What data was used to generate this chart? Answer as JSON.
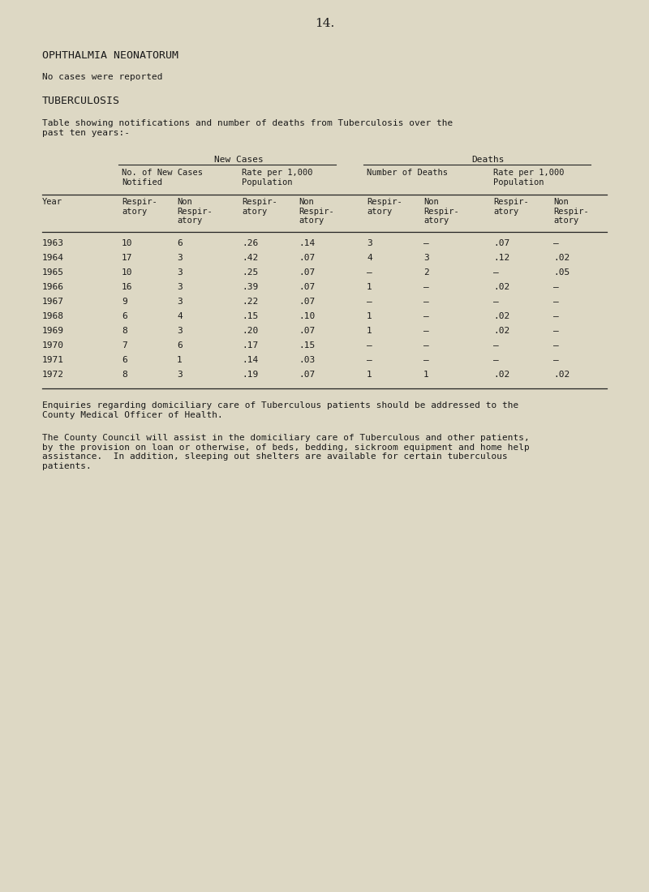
{
  "page_number": "14.",
  "bg_color": "#ddd8c4",
  "title1": "OPHTHALMIA NEONATORUM",
  "title2": "No cases were reported",
  "title3": "TUBERCULOSIS",
  "title4": "Table showing notifications and number of deaths from Tuberculosis over the\npast ten years:-",
  "section_new_cases": "New Cases",
  "section_deaths": "Deaths",
  "rows": [
    [
      "1963",
      "10",
      "6",
      ".26",
      ".14",
      "3",
      "-",
      ".07",
      "-"
    ],
    [
      "1964",
      "17",
      "3",
      ".42",
      ".07",
      "4",
      "3",
      ".12",
      ".02"
    ],
    [
      "1965",
      "10",
      "3",
      ".25",
      ".07",
      "-",
      "2",
      "-",
      ".05"
    ],
    [
      "1966",
      "16",
      "3",
      ".39",
      ".07",
      "1",
      "-",
      ".02",
      "-"
    ],
    [
      "1967",
      "9",
      "3",
      ".22",
      ".07",
      "-",
      "-",
      "-",
      "-"
    ],
    [
      "1968",
      "6",
      "4",
      ".15",
      ".10",
      "1",
      "-",
      ".02",
      "-"
    ],
    [
      "1969",
      "8",
      "3",
      ".20",
      ".07",
      "1",
      "-",
      ".02",
      "-"
    ],
    [
      "1970",
      "7",
      "6",
      ".17",
      ".15",
      "-",
      "-",
      "-",
      "-"
    ],
    [
      "1971",
      "6",
      "1",
      ".14",
      ".03",
      "-",
      "-",
      "-",
      "-"
    ],
    [
      "1972",
      "8",
      "3",
      ".19",
      ".07",
      "1",
      "1",
      ".02",
      ".02"
    ]
  ],
  "footer1": "Enquiries regarding domiciliary care of Tuberculous patients should be addressed to the\nCounty Medical Officer of Health.",
  "footer2": "The County Council will assist in the domiciliary care of Tuberculous and other patients,\nby the provision on loan or otherwise, of beds, bedding, sickroom equipment and home help\nassistance.  In addition, sleeping out shelters are available for certain tuberculous\npatients.",
  "text_color": "#1a1a1a",
  "line_color": "#222222",
  "font_size_body": 8.0,
  "font_size_header": 8.5,
  "font_size_title": 9.5,
  "font_size_pagenum": 11.0
}
